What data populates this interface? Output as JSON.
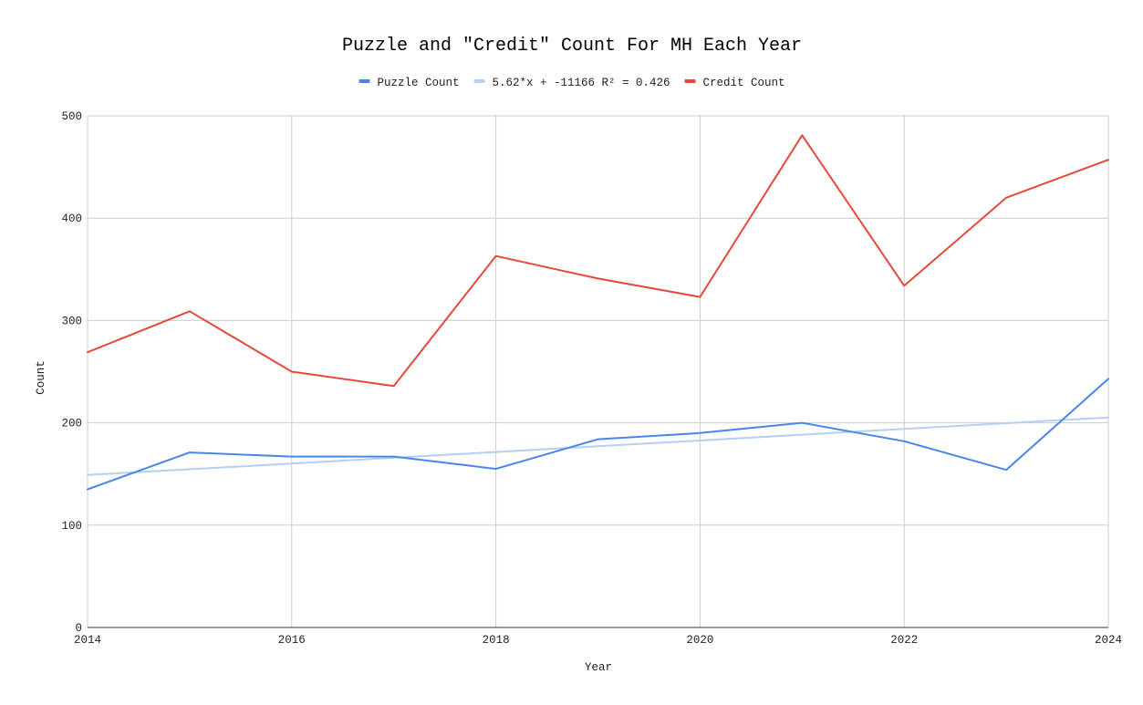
{
  "chart_data": {
    "type": "line",
    "title": "Puzzle and \"Credit\" Count For MH Each Year",
    "xlabel": "Year",
    "ylabel": "Count",
    "x": [
      2014,
      2015,
      2016,
      2017,
      2018,
      2019,
      2020,
      2021,
      2022,
      2023,
      2024
    ],
    "xlim": [
      2014,
      2024
    ],
    "ylim": [
      0,
      500
    ],
    "x_ticks": [
      "2014",
      "2016",
      "2018",
      "2020",
      "2022",
      "2024"
    ],
    "y_ticks": [
      "0",
      "100",
      "200",
      "300",
      "400",
      "500"
    ],
    "grid": true,
    "legend_position": "top-center",
    "series": [
      {
        "name": "Puzzle Count",
        "color": "#4a86e8",
        "values": [
          135,
          171,
          167,
          167,
          155,
          184,
          190,
          200,
          182,
          154,
          243
        ]
      },
      {
        "name": "5.62*x + -11166 R² = 0.426",
        "color": "#b6cef5",
        "trendline": true,
        "values": [
          149,
          154.6,
          160.2,
          165.9,
          171.5,
          177.1,
          182.7,
          188.4,
          194,
          199.6,
          205.2
        ]
      },
      {
        "name": "Credit Count",
        "color": "#e34a3a",
        "values": [
          269,
          309,
          250,
          236,
          363,
          341,
          323,
          481,
          334,
          420,
          457
        ]
      }
    ]
  }
}
